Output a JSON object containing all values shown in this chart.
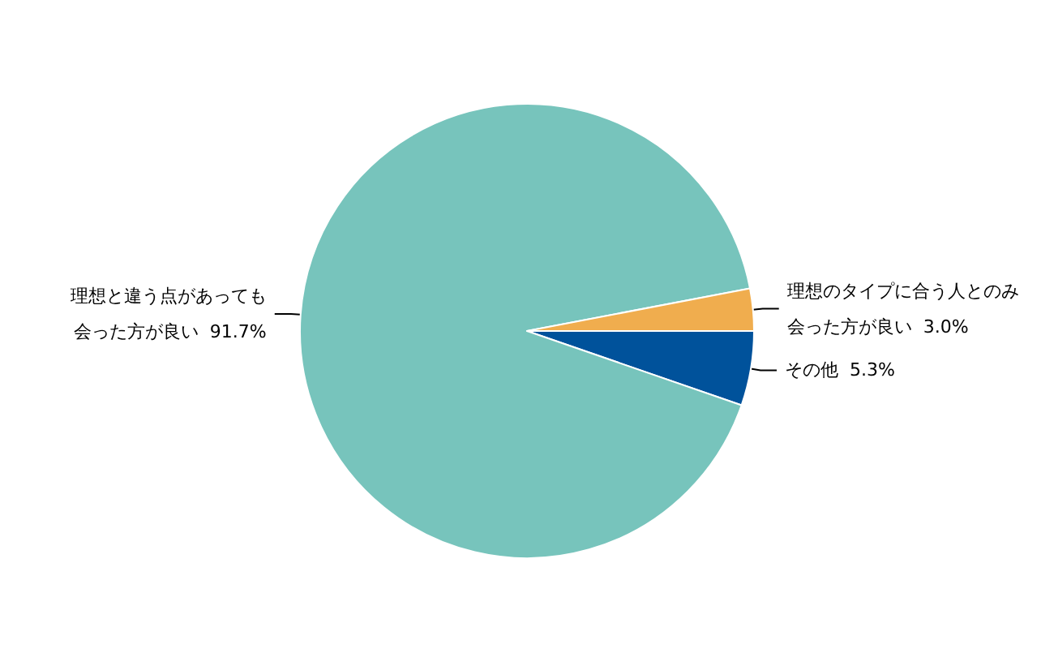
{
  "chart_data": {
    "type": "pie",
    "categories": [
      "その他",
      "理想と違う点があっても会った方が良い",
      "理想のタイプに合う人とのみ会った方が良い"
    ],
    "values": [
      5.3,
      91.7,
      3.0
    ],
    "value_labels": [
      "5.3%",
      "91.7%",
      "3.0%"
    ],
    "colors": [
      "#00529b",
      "#77c4bc",
      "#f0ad4e"
    ],
    "legend": false
  }
}
